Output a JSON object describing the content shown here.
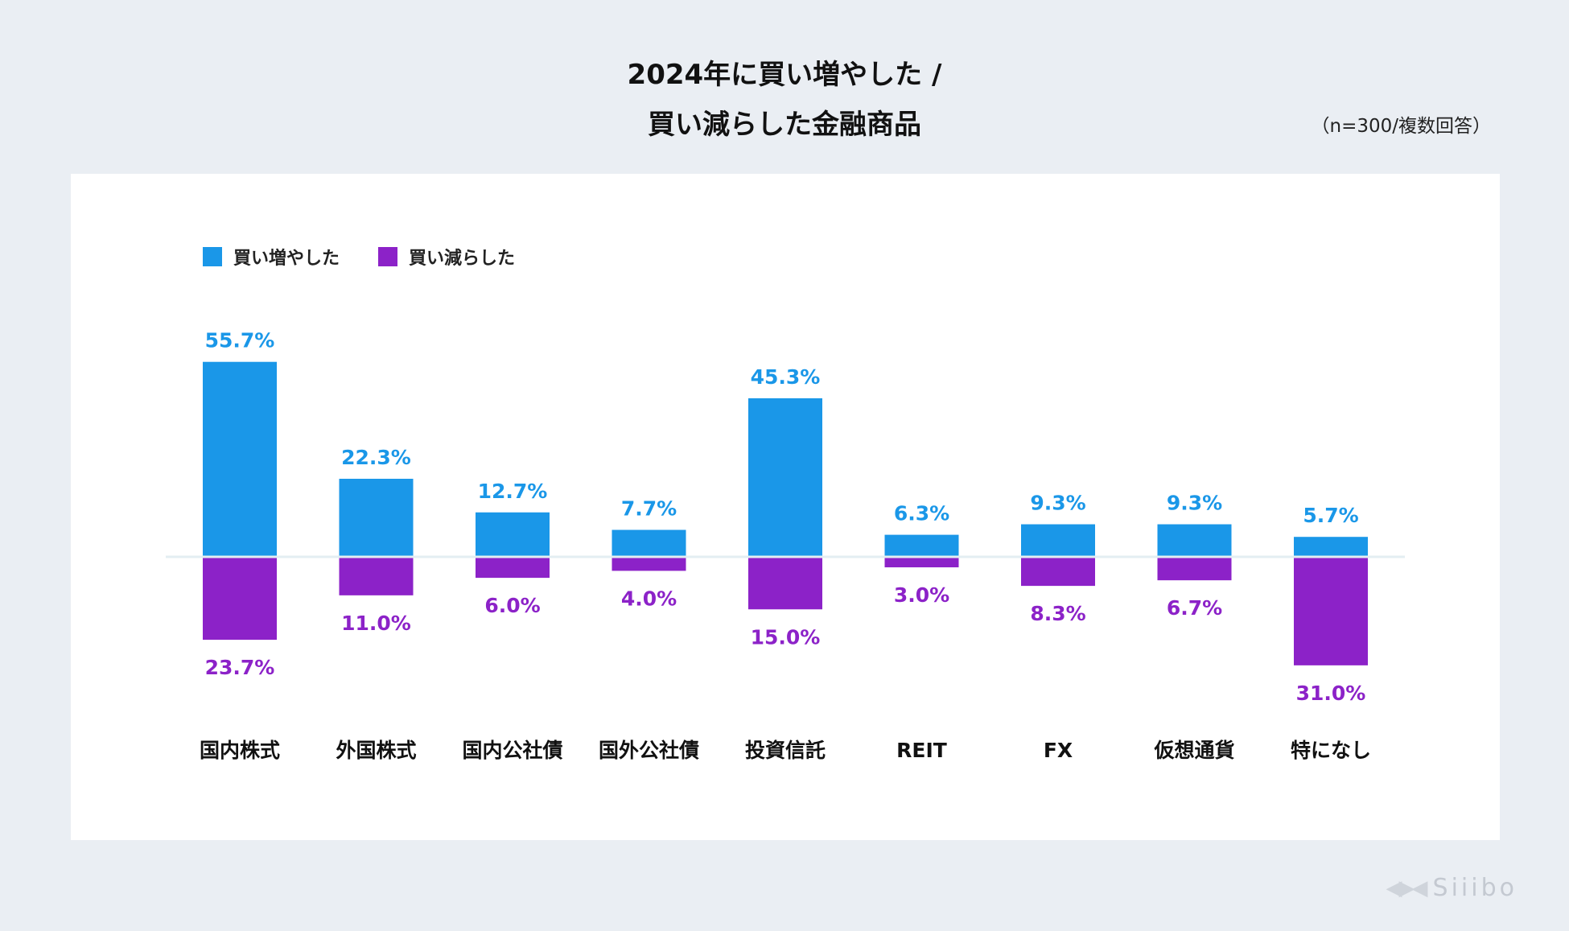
{
  "title": {
    "line1": "2024年に買い増やした /",
    "line2": "買い減らした金融商品"
  },
  "note": "（n=300/複数回答）",
  "colors": {
    "increase": "#1a97e8",
    "decrease": "#8c22c8",
    "baseline": "#e3eef2"
  },
  "logo": {
    "text": "Siiibo",
    "mark": "◀▶◀"
  },
  "chart_data": {
    "type": "bar",
    "categories": [
      "国内株式",
      "外国株式",
      "国内公社債",
      "国外公社債",
      "投資信託",
      "REIT",
      "FX",
      "仮想通貨",
      "特になし"
    ],
    "series": [
      {
        "name": "買い増やした",
        "direction": "up",
        "values": [
          55.7,
          22.3,
          12.7,
          7.7,
          45.3,
          6.3,
          9.3,
          9.3,
          5.7
        ],
        "labels": [
          "55.7%",
          "22.3%",
          "12.7%",
          "7.7%",
          "45.3%",
          "6.3%",
          "9.3%",
          "9.3%",
          "5.7%"
        ]
      },
      {
        "name": "買い減らした",
        "direction": "down",
        "values": [
          23.7,
          11.0,
          6.0,
          4.0,
          15.0,
          3.0,
          8.3,
          6.7,
          31.0
        ],
        "labels": [
          "23.7%",
          "11.0%",
          "6.0%",
          "4.0%",
          "15.0%",
          "3.0%",
          "8.3%",
          "6.7%",
          "31.0%"
        ]
      }
    ],
    "unit": "%",
    "legend": "top-left",
    "grid": false
  }
}
